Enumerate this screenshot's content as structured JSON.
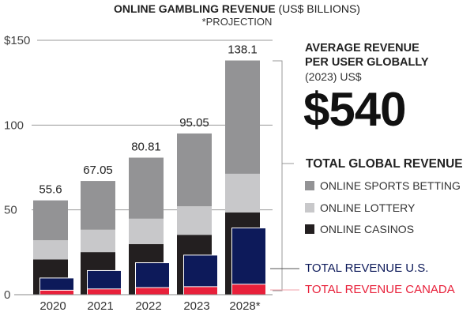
{
  "title": {
    "bold": "ONLINE GAMBLING REVENUE",
    "normal": " (US$ BILLIONS)"
  },
  "subtitle": "*PROJECTION",
  "arpu": {
    "line1": "AVERAGE REVENUE",
    "line2": "PER USER GLOBALLY",
    "sub": "(2023) US$",
    "value": "$540"
  },
  "legend": {
    "title": "TOTAL GLOBAL REVENUE",
    "items": [
      {
        "label": "ONLINE SPORTS BETTING",
        "color": "#939395"
      },
      {
        "label": "ONLINE LOTTERY",
        "color": "#c8c8ca"
      },
      {
        "label": "ONLINE CASINOS",
        "color": "#231f20"
      }
    ],
    "us": "TOTAL REVENUE U.S.",
    "canada": "TOTAL REVENUE CANADA"
  },
  "colors": {
    "us": "#0d1a5a",
    "canada": "#e8203a",
    "grid": "#888888"
  },
  "chart_data": {
    "type": "bar",
    "stacked": true,
    "title": "ONLINE GAMBLING REVENUE (US$ BILLIONS)",
    "categories": [
      "2020",
      "2021",
      "2022",
      "2023",
      "2028*"
    ],
    "totals": [
      55.6,
      67.05,
      80.81,
      95.05,
      138.1
    ],
    "total_labels": [
      "55.6",
      "67.05",
      "80.81",
      "95.05",
      "138.1"
    ],
    "series": [
      {
        "name": "ONLINE CASINOS",
        "values": [
          20.8,
          25.1,
          29.8,
          35.3,
          48.5
        ]
      },
      {
        "name": "ONLINE LOTTERY",
        "values": [
          11.3,
          13.2,
          15.0,
          16.8,
          22.8
        ]
      },
      {
        "name": "ONLINE SPORTS BETTING",
        "values": [
          23.5,
          28.75,
          36.01,
          42.95,
          66.8
        ]
      }
    ],
    "overlay_series": [
      {
        "name": "TOTAL REVENUE U.S.",
        "values": [
          9.6,
          14.0,
          18.6,
          23.1,
          39.1
        ]
      },
      {
        "name": "TOTAL REVENUE CANADA",
        "values": [
          2.6,
          3.4,
          4.2,
          4.7,
          6.2
        ]
      }
    ],
    "ylim": [
      0,
      150
    ],
    "yticks": [
      0,
      50,
      100,
      150
    ],
    "ytick_labels": [
      "0",
      "50",
      "100",
      "$150"
    ],
    "grid": true
  }
}
